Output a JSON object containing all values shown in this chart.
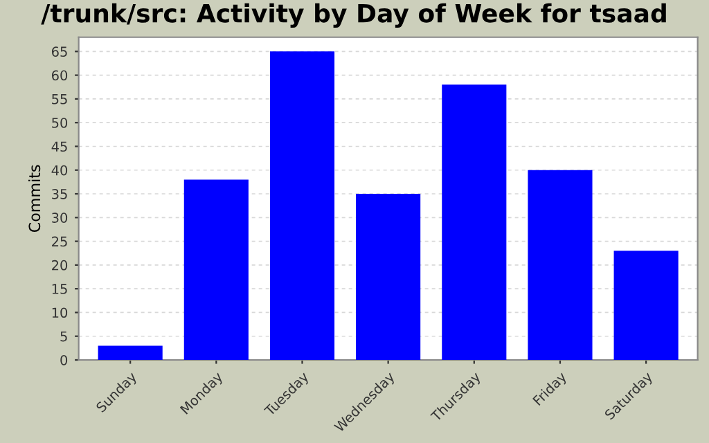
{
  "chart_data": {
    "type": "bar",
    "title": "/trunk/src: Activity by Day of Week for tsaad",
    "ylabel": "Commits",
    "categories": [
      "Sunday",
      "Monday",
      "Tuesday",
      "Wednesday",
      "Thursday",
      "Friday",
      "Saturday"
    ],
    "values": [
      3,
      38,
      65,
      35,
      58,
      40,
      23
    ],
    "color": "#0000ff",
    "ylim": [
      0,
      68
    ],
    "yticks": [
      0,
      5,
      10,
      15,
      20,
      25,
      30,
      35,
      40,
      45,
      50,
      55,
      60,
      65
    ],
    "grid": "y"
  }
}
